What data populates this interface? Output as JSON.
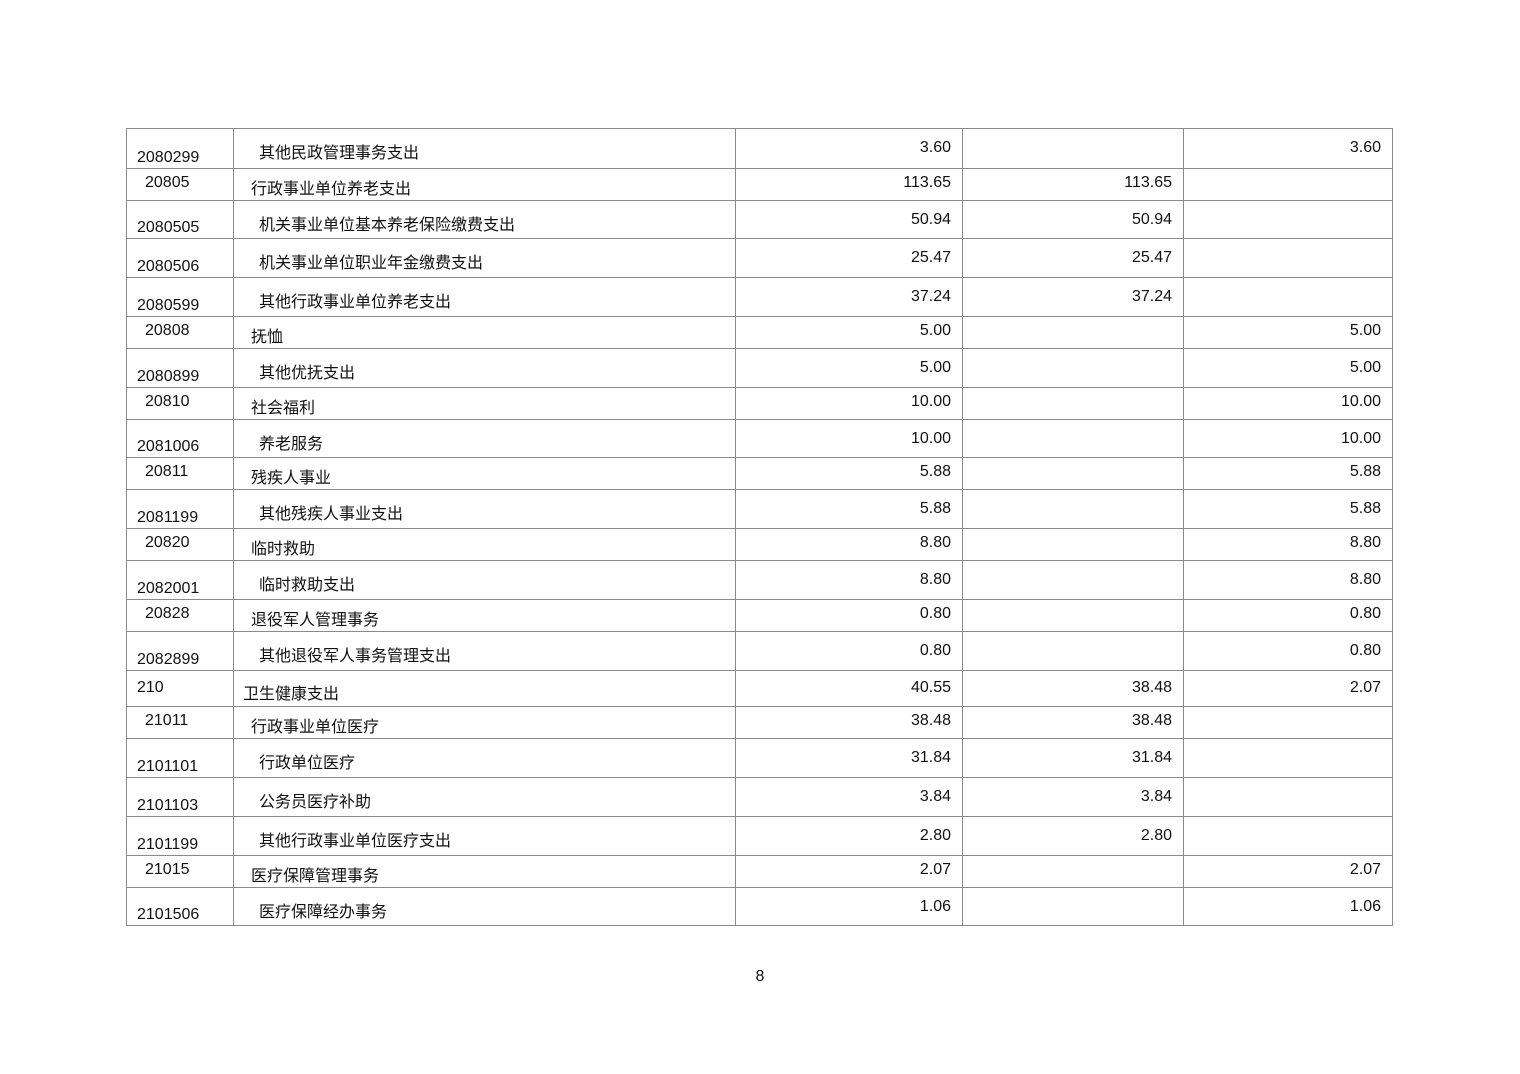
{
  "rows": [
    {
      "code": "2080299",
      "name": "其他民政管理事务支出",
      "total": "3.60",
      "basic": "",
      "project": "3.60",
      "level": 3,
      "h": 40
    },
    {
      "code": "20805",
      "name": "行政事业单位养老支出",
      "total": "113.65",
      "basic": "113.65",
      "project": "",
      "level": 2,
      "h": 32
    },
    {
      "code": "2080505",
      "name": "机关事业单位基本养老保险缴费支出",
      "total": "50.94",
      "basic": "50.94",
      "project": "",
      "level": 3,
      "h": 38
    },
    {
      "code": "2080506",
      "name": "机关事业单位职业年金缴费支出",
      "total": "25.47",
      "basic": "25.47",
      "project": "",
      "level": 3,
      "h": 39
    },
    {
      "code": "2080599",
      "name": "其他行政事业单位养老支出",
      "total": "37.24",
      "basic": "37.24",
      "project": "",
      "level": 3,
      "h": 39
    },
    {
      "code": "20808",
      "name": "抚恤",
      "total": "5.00",
      "basic": "",
      "project": "5.00",
      "level": 2,
      "h": 32
    },
    {
      "code": "2080899",
      "name": "其他优抚支出",
      "total": "5.00",
      "basic": "",
      "project": "5.00",
      "level": 3,
      "h": 39
    },
    {
      "code": "20810",
      "name": "社会福利",
      "total": "10.00",
      "basic": "",
      "project": "10.00",
      "level": 2,
      "h": 32
    },
    {
      "code": "2081006",
      "name": "养老服务",
      "total": "10.00",
      "basic": "",
      "project": "10.00",
      "level": 3,
      "h": 38
    },
    {
      "code": "20811",
      "name": "残疾人事业",
      "total": "5.88",
      "basic": "",
      "project": "5.88",
      "level": 2,
      "h": 32
    },
    {
      "code": "2081199",
      "name": "其他残疾人事业支出",
      "total": "5.88",
      "basic": "",
      "project": "5.88",
      "level": 3,
      "h": 39
    },
    {
      "code": "20820",
      "name": "临时救助",
      "total": "8.80",
      "basic": "",
      "project": "8.80",
      "level": 2,
      "h": 32
    },
    {
      "code": "2082001",
      "name": "临时救助支出",
      "total": "8.80",
      "basic": "",
      "project": "8.80",
      "level": 3,
      "h": 39
    },
    {
      "code": "20828",
      "name": "退役军人管理事务",
      "total": "0.80",
      "basic": "",
      "project": "0.80",
      "level": 2,
      "h": 32
    },
    {
      "code": "2082899",
      "name": "其他退役军人事务管理支出",
      "total": "0.80",
      "basic": "",
      "project": "0.80",
      "level": 3,
      "h": 39
    },
    {
      "code": "210",
      "name": "卫生健康支出",
      "total": "40.55",
      "basic": "38.48",
      "project": "2.07",
      "level": 1,
      "h": 36
    },
    {
      "code": "21011",
      "name": "行政事业单位医疗",
      "total": "38.48",
      "basic": "38.48",
      "project": "",
      "level": 2,
      "h": 32
    },
    {
      "code": "2101101",
      "name": "行政单位医疗",
      "total": "31.84",
      "basic": "31.84",
      "project": "",
      "level": 3,
      "h": 39
    },
    {
      "code": "2101103",
      "name": "公务员医疗补助",
      "total": "3.84",
      "basic": "3.84",
      "project": "",
      "level": 3,
      "h": 39
    },
    {
      "code": "2101199",
      "name": "其他行政事业单位医疗支出",
      "total": "2.80",
      "basic": "2.80",
      "project": "",
      "level": 3,
      "h": 39
    },
    {
      "code": "21015",
      "name": "医疗保障管理事务",
      "total": "2.07",
      "basic": "",
      "project": "2.07",
      "level": 2,
      "h": 32
    },
    {
      "code": "2101506",
      "name": "医疗保障经办事务",
      "total": "1.06",
      "basic": "",
      "project": "1.06",
      "level": 3,
      "h": 38
    }
  ],
  "page_number": "8"
}
